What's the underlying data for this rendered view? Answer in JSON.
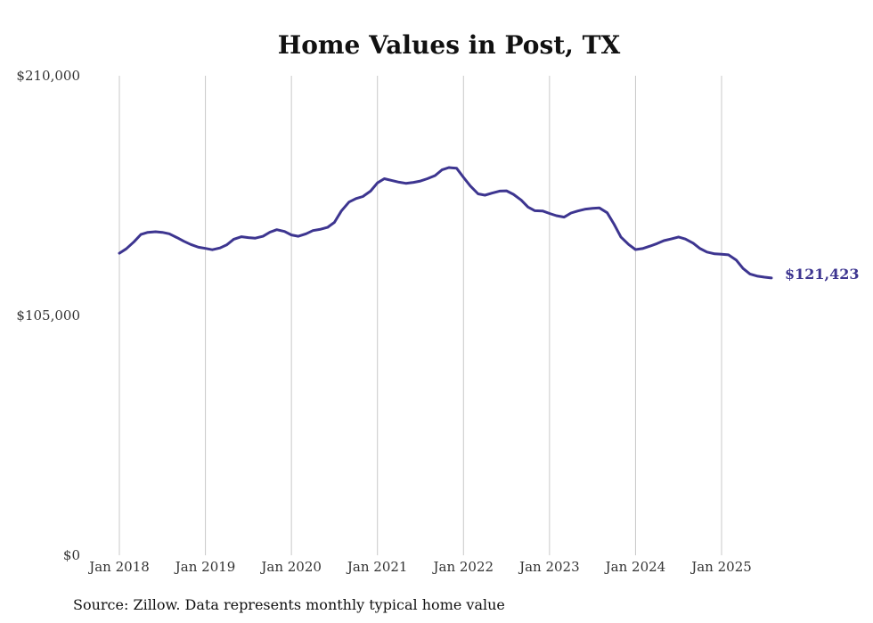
{
  "chart_data": {
    "type": "line",
    "title": "Home Values in Post, TX",
    "xlabel": "",
    "ylabel": "",
    "ylim": [
      0,
      210000
    ],
    "yticks": [
      {
        "value": 0,
        "label": "$0"
      },
      {
        "value": 105000,
        "label": "$105,000"
      },
      {
        "value": 210000,
        "label": "$210,000"
      }
    ],
    "xticks": [
      {
        "value": 2018,
        "label": "Jan 2018"
      },
      {
        "value": 2019,
        "label": "Jan 2019"
      },
      {
        "value": 2020,
        "label": "Jan 2020"
      },
      {
        "value": 2021,
        "label": "Jan 2021"
      },
      {
        "value": 2022,
        "label": "Jan 2022"
      },
      {
        "value": 2023,
        "label": "Jan 2023"
      },
      {
        "value": 2024,
        "label": "Jan 2024"
      },
      {
        "value": 2025,
        "label": "Jan 2025"
      }
    ],
    "xlim": [
      2018,
      2025.67
    ],
    "grid": "vertical",
    "series": [
      {
        "name": "Typical home value",
        "color": "#3d3590",
        "end_label": "$121,423",
        "points": [
          [
            2018.0,
            132300
          ],
          [
            2018.08,
            134200
          ],
          [
            2018.17,
            137300
          ],
          [
            2018.25,
            140500
          ],
          [
            2018.33,
            141400
          ],
          [
            2018.42,
            141700
          ],
          [
            2018.5,
            141400
          ],
          [
            2018.58,
            140800
          ],
          [
            2018.67,
            139100
          ],
          [
            2018.75,
            137500
          ],
          [
            2018.83,
            136100
          ],
          [
            2018.92,
            134900
          ],
          [
            2019.0,
            134400
          ],
          [
            2019.08,
            133800
          ],
          [
            2019.17,
            134600
          ],
          [
            2019.25,
            136000
          ],
          [
            2019.33,
            138400
          ],
          [
            2019.42,
            139500
          ],
          [
            2019.5,
            139100
          ],
          [
            2019.58,
            138900
          ],
          [
            2019.67,
            139700
          ],
          [
            2019.75,
            141500
          ],
          [
            2019.83,
            142600
          ],
          [
            2019.92,
            141800
          ],
          [
            2020.0,
            140300
          ],
          [
            2020.08,
            139700
          ],
          [
            2020.17,
            140800
          ],
          [
            2020.25,
            142200
          ],
          [
            2020.33,
            142700
          ],
          [
            2020.42,
            143600
          ],
          [
            2020.5,
            145800
          ],
          [
            2020.58,
            150800
          ],
          [
            2020.67,
            154700
          ],
          [
            2020.75,
            156200
          ],
          [
            2020.83,
            157100
          ],
          [
            2020.92,
            159500
          ],
          [
            2021.0,
            163100
          ],
          [
            2021.08,
            164900
          ],
          [
            2021.17,
            164100
          ],
          [
            2021.25,
            163400
          ],
          [
            2021.33,
            162900
          ],
          [
            2021.42,
            163300
          ],
          [
            2021.5,
            163900
          ],
          [
            2021.58,
            164900
          ],
          [
            2021.67,
            166300
          ],
          [
            2021.75,
            168800
          ],
          [
            2021.83,
            169800
          ],
          [
            2021.92,
            169500
          ],
          [
            2022.0,
            165500
          ],
          [
            2022.08,
            161700
          ],
          [
            2022.17,
            158300
          ],
          [
            2022.25,
            157700
          ],
          [
            2022.33,
            158600
          ],
          [
            2022.42,
            159500
          ],
          [
            2022.5,
            159600
          ],
          [
            2022.58,
            158100
          ],
          [
            2022.67,
            155600
          ],
          [
            2022.75,
            152500
          ],
          [
            2022.83,
            150900
          ],
          [
            2022.92,
            150800
          ],
          [
            2023.0,
            149700
          ],
          [
            2023.08,
            148700
          ],
          [
            2023.17,
            148100
          ],
          [
            2023.25,
            149900
          ],
          [
            2023.33,
            150800
          ],
          [
            2023.42,
            151600
          ],
          [
            2023.5,
            151900
          ],
          [
            2023.58,
            152100
          ],
          [
            2023.67,
            150000
          ],
          [
            2023.75,
            145000
          ],
          [
            2023.83,
            139400
          ],
          [
            2023.92,
            136100
          ],
          [
            2024.0,
            133900
          ],
          [
            2024.08,
            134300
          ],
          [
            2024.17,
            135400
          ],
          [
            2024.25,
            136500
          ],
          [
            2024.33,
            137800
          ],
          [
            2024.42,
            138600
          ],
          [
            2024.5,
            139400
          ],
          [
            2024.58,
            138500
          ],
          [
            2024.67,
            136700
          ],
          [
            2024.75,
            134300
          ],
          [
            2024.83,
            132800
          ],
          [
            2024.92,
            132000
          ],
          [
            2025.0,
            131800
          ],
          [
            2025.08,
            131600
          ],
          [
            2025.17,
            129300
          ],
          [
            2025.25,
            125600
          ],
          [
            2025.33,
            123200
          ],
          [
            2025.42,
            122200
          ],
          [
            2025.5,
            121800
          ],
          [
            2025.58,
            121423
          ]
        ]
      }
    ]
  },
  "footer": {
    "source": "Source: Zillow. Data represents monthly typical home value"
  }
}
